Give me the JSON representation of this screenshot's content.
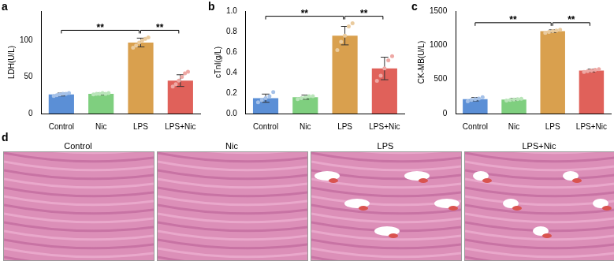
{
  "chart_data": [
    {
      "type": "bar",
      "title": "a",
      "y_label": "LDH(U/L)",
      "categories": [
        "Control",
        "Nic",
        "LPS",
        "LPS+Nic"
      ],
      "values": [
        26,
        27,
        97,
        45
      ],
      "errors": [
        2,
        1.5,
        6,
        8
      ],
      "points": [
        [
          24,
          25,
          26,
          27,
          27,
          28
        ],
        [
          26,
          27,
          27,
          28,
          27,
          28
        ],
        [
          90,
          93,
          97,
          100,
          102,
          104
        ],
        [
          37,
          40,
          45,
          50,
          55,
          57
        ]
      ],
      "colors": [
        "#5b8fd6",
        "#7fcf7f",
        "#d9a04e",
        "#e0615a"
      ],
      "ylim": [
        0,
        140
      ],
      "yticks": [
        0,
        50,
        100
      ],
      "grid": false,
      "annotations": [
        {
          "from": "Control",
          "to": "LPS",
          "text": "**"
        },
        {
          "from": "LPS",
          "to": "LPS+Nic",
          "text": "**"
        }
      ]
    },
    {
      "type": "bar",
      "title": "b",
      "y_label": "cTnI(g/L)",
      "categories": [
        "Control",
        "Nic",
        "LPS",
        "LPS+Nic"
      ],
      "values": [
        0.15,
        0.16,
        0.76,
        0.44
      ],
      "errors": [
        0.04,
        0.02,
        0.09,
        0.11
      ],
      "points": [
        [
          0.11,
          0.13,
          0.15,
          0.17,
          0.21
        ],
        [
          0.14,
          0.15,
          0.16,
          0.17,
          0.17
        ],
        [
          0.62,
          0.7,
          0.76,
          0.85,
          0.88
        ],
        [
          0.32,
          0.37,
          0.44,
          0.52,
          0.56
        ]
      ],
      "colors": [
        "#5b8fd6",
        "#7fcf7f",
        "#d9a04e",
        "#e0615a"
      ],
      "ylim": [
        0,
        1.0
      ],
      "yticks": [
        {
          "value": 0,
          "label": "0.0"
        },
        0.2,
        0.4,
        0.6,
        0.8,
        {
          "value": 1.0,
          "label": "1.0"
        }
      ],
      "grid": false,
      "annotations": [
        {
          "from": "Control",
          "to": "LPS",
          "text": "**"
        },
        {
          "from": "LPS",
          "to": "LPS+Nic",
          "text": "**"
        }
      ]
    },
    {
      "type": "bar",
      "title": "c",
      "y_label": "CK-MB(U/L)",
      "categories": [
        "Control",
        "Nic",
        "LPS",
        "LPS+Nic"
      ],
      "values": [
        210,
        205,
        1205,
        630
      ],
      "errors": [
        25,
        15,
        20,
        20
      ],
      "points": [
        [
          180,
          200,
          210,
          220,
          240
        ],
        [
          190,
          200,
          205,
          210,
          215
        ],
        [
          1180,
          1195,
          1205,
          1215,
          1225
        ],
        [
          610,
          620,
          630,
          640,
          650
        ]
      ],
      "colors": [
        "#5b8fd6",
        "#7fcf7f",
        "#d9a04e",
        "#e0615a"
      ],
      "ylim": [
        0,
        1500
      ],
      "yticks": [
        0,
        500,
        1000,
        1500
      ],
      "grid": false,
      "annotations": [
        {
          "from": "Control",
          "to": "LPS",
          "text": "**"
        },
        {
          "from": "LPS",
          "to": "LPS+Nic",
          "text": "**"
        }
      ]
    }
  ],
  "panel_d": {
    "label": "d",
    "images": [
      "Control",
      "Nic",
      "LPS",
      "LPS+Nic"
    ]
  }
}
